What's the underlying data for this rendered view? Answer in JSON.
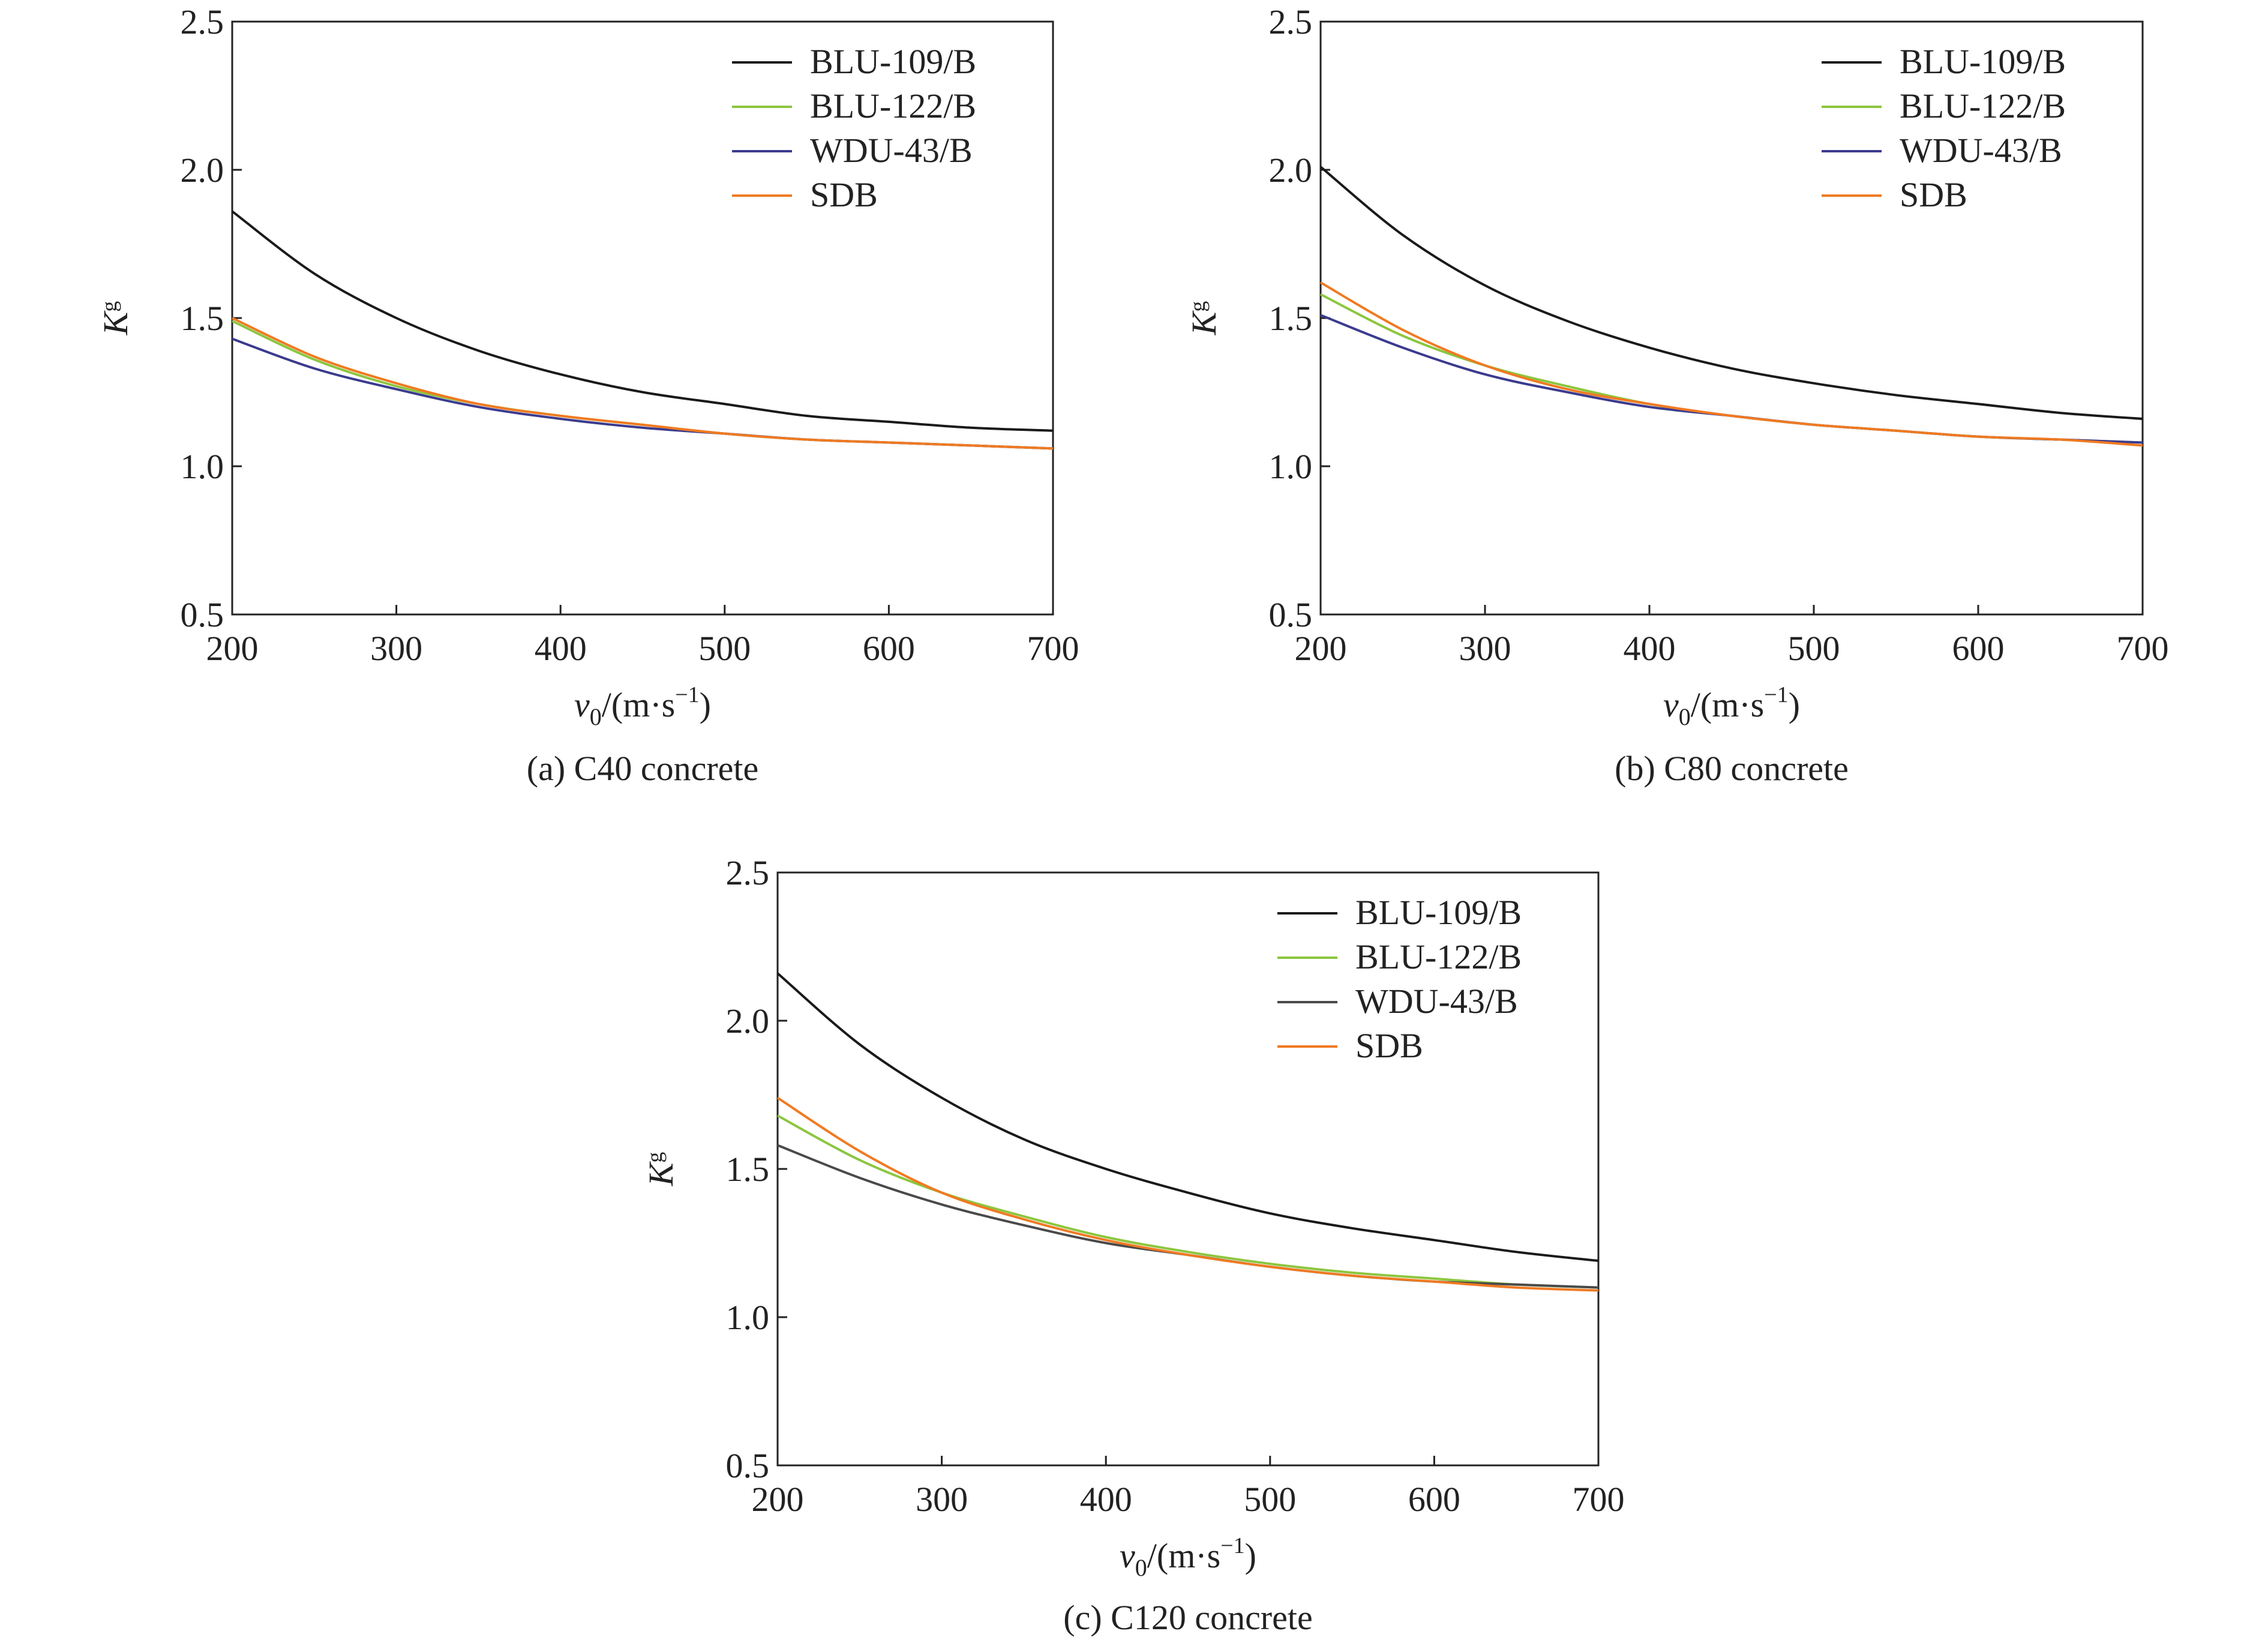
{
  "figure": {
    "x_label_main": "v",
    "x_label_sub": "0",
    "x_label_unit": "/(m·s",
    "x_label_exp": "−1",
    "x_label_close": ")",
    "y_label_main": "K",
    "y_label_sub": "g"
  },
  "colors": {
    "BLU-109/B": "#1a1a1a",
    "BLU-122/B": "#8cc63f",
    "WDU-43/B": "#3b3b8f",
    "WDU-43/B (c)": "#4a4a4a",
    "SDB": "#f07a22"
  },
  "chart_data": [
    {
      "type": "line",
      "caption": "(a) C40 concrete",
      "xlim": [
        200,
        700
      ],
      "ylim": [
        0.5,
        2.5
      ],
      "xticks": [
        "200",
        "300",
        "400",
        "500",
        "600",
        "700"
      ],
      "yticks": [
        "0.5",
        "1.0",
        "1.5",
        "2.0",
        "2.5"
      ],
      "legend_position": "top-right",
      "grid": false,
      "x": [
        200,
        250,
        300,
        350,
        400,
        450,
        500,
        550,
        600,
        650,
        700
      ],
      "series": [
        {
          "name": "BLU-109/B",
          "color": "#1a1a1a",
          "values": [
            1.86,
            1.65,
            1.5,
            1.39,
            1.31,
            1.25,
            1.21,
            1.17,
            1.15,
            1.13,
            1.12
          ]
        },
        {
          "name": "BLU-122/B",
          "color": "#8cc63f",
          "values": [
            1.49,
            1.36,
            1.27,
            1.21,
            1.17,
            1.14,
            1.11,
            1.09,
            1.08,
            1.07,
            1.06
          ]
        },
        {
          "name": "WDU-43/B",
          "color": "#3b3b8f",
          "values": [
            1.43,
            1.33,
            1.26,
            1.2,
            1.16,
            1.13,
            1.11,
            1.09,
            1.08,
            1.07,
            1.06
          ]
        },
        {
          "name": "SDB",
          "color": "#f07a22",
          "values": [
            1.5,
            1.37,
            1.28,
            1.21,
            1.17,
            1.14,
            1.11,
            1.09,
            1.08,
            1.07,
            1.06
          ]
        }
      ]
    },
    {
      "type": "line",
      "caption": "(b) C80 concrete",
      "xlim": [
        200,
        700
      ],
      "ylim": [
        0.5,
        2.5
      ],
      "xticks": [
        "200",
        "300",
        "400",
        "500",
        "600",
        "700"
      ],
      "yticks": [
        "0.5",
        "1.0",
        "1.5",
        "2.0",
        "2.5"
      ],
      "legend_position": "top-right",
      "grid": false,
      "x": [
        200,
        250,
        300,
        350,
        400,
        450,
        500,
        550,
        600,
        650,
        700
      ],
      "series": [
        {
          "name": "BLU-109/B",
          "color": "#1a1a1a",
          "values": [
            2.01,
            1.78,
            1.61,
            1.49,
            1.4,
            1.33,
            1.28,
            1.24,
            1.21,
            1.18,
            1.16
          ]
        },
        {
          "name": "BLU-122/B",
          "color": "#8cc63f",
          "values": [
            1.58,
            1.44,
            1.34,
            1.27,
            1.21,
            1.17,
            1.14,
            1.12,
            1.1,
            1.09,
            1.08
          ]
        },
        {
          "name": "WDU-43/B",
          "color": "#3b3b8f",
          "values": [
            1.51,
            1.4,
            1.31,
            1.25,
            1.2,
            1.17,
            1.14,
            1.12,
            1.1,
            1.09,
            1.08
          ]
        },
        {
          "name": "SDB",
          "color": "#f07a22",
          "values": [
            1.62,
            1.46,
            1.34,
            1.26,
            1.21,
            1.17,
            1.14,
            1.12,
            1.1,
            1.09,
            1.07
          ]
        }
      ]
    },
    {
      "type": "line",
      "caption": "(c) C120 concrete",
      "xlim": [
        200,
        700
      ],
      "ylim": [
        0.5,
        2.5
      ],
      "xticks": [
        "200",
        "300",
        "400",
        "500",
        "600",
        "700"
      ],
      "yticks": [
        "0.5",
        "1.0",
        "1.5",
        "2.0",
        "2.5"
      ],
      "legend_position": "top-right",
      "grid": false,
      "x": [
        200,
        250,
        300,
        350,
        400,
        450,
        500,
        550,
        600,
        650,
        700
      ],
      "series": [
        {
          "name": "BLU-109/B",
          "color": "#1a1a1a",
          "values": [
            2.16,
            1.92,
            1.74,
            1.6,
            1.5,
            1.42,
            1.35,
            1.3,
            1.26,
            1.22,
            1.19
          ]
        },
        {
          "name": "BLU-122/B",
          "color": "#8cc63f",
          "values": [
            1.68,
            1.53,
            1.42,
            1.34,
            1.27,
            1.22,
            1.18,
            1.15,
            1.13,
            1.11,
            1.1
          ]
        },
        {
          "name": "WDU-43/B",
          "color": "#4a4a4a",
          "values": [
            1.58,
            1.47,
            1.38,
            1.31,
            1.25,
            1.21,
            1.17,
            1.14,
            1.12,
            1.11,
            1.1
          ]
        },
        {
          "name": "SDB",
          "color": "#f07a22",
          "values": [
            1.74,
            1.56,
            1.42,
            1.33,
            1.26,
            1.21,
            1.17,
            1.14,
            1.12,
            1.1,
            1.09
          ]
        }
      ]
    }
  ]
}
